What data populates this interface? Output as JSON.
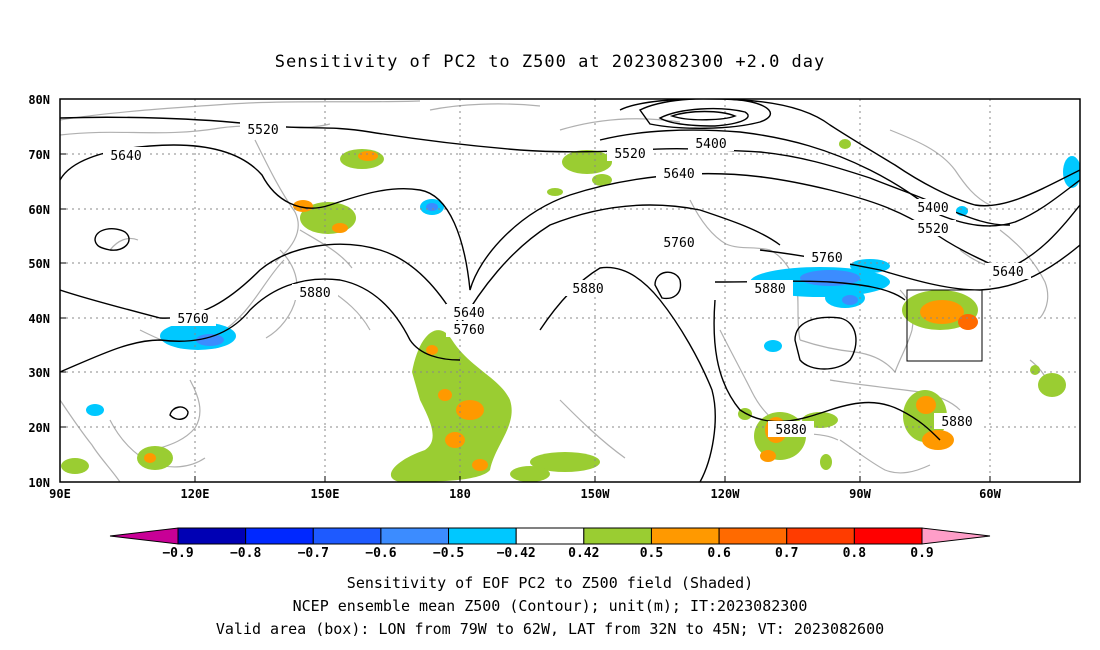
{
  "title": "Sensitivity of PC2 to Z500 at 2023082300 +2.0 day",
  "lat_labels": [
    "80N",
    "70N",
    "60N",
    "50N",
    "40N",
    "30N",
    "20N",
    "10N"
  ],
  "lon_labels": [
    "90E",
    "120E",
    "150E",
    "180",
    "150W",
    "120W",
    "90W",
    "60W"
  ],
  "contour_labels": {
    "c5520a": "5520",
    "c5640a": "5640",
    "c5520b": "5520",
    "c5400a": "5400",
    "c5640b": "5640",
    "c5760a": "5760",
    "c5880a": "5880",
    "c5640c": "5640",
    "c5760b": "5760",
    "c5880b": "5880",
    "c5760c": "5760",
    "c5880c": "5880",
    "c5400b": "5400",
    "c5520c": "5520",
    "c5640d": "5640",
    "c5760d": "5760",
    "c5880d": "5880",
    "c5880e": "5880"
  },
  "colorbar": {
    "labels": [
      "-0.9",
      "-0.8",
      "-0.7",
      "-0.6",
      "-0.5",
      "-0.42",
      "0.42",
      "0.5",
      "0.6",
      "0.7",
      "0.8",
      "0.9"
    ],
    "colors": [
      "#0000b4",
      "#0028ff",
      "#1e5aff",
      "#3c8cff",
      "#00c8ff",
      "#ffffff",
      "#9acd32",
      "#ff9900",
      "#ff6a00",
      "#ff3c00",
      "#ff0000"
    ],
    "under_color": "#c80096",
    "over_color": "#ff9ec8"
  },
  "captions": {
    "line1": "Sensitivity of EOF PC2 to Z500 field (Shaded)",
    "line2": "NCEP ensemble mean Z500 (Contour); unit(m); IT:2023082300",
    "line3": "Valid area (box): LON from 79W to 62W, LAT from 32N to 45N; VT: 2023082600"
  }
}
